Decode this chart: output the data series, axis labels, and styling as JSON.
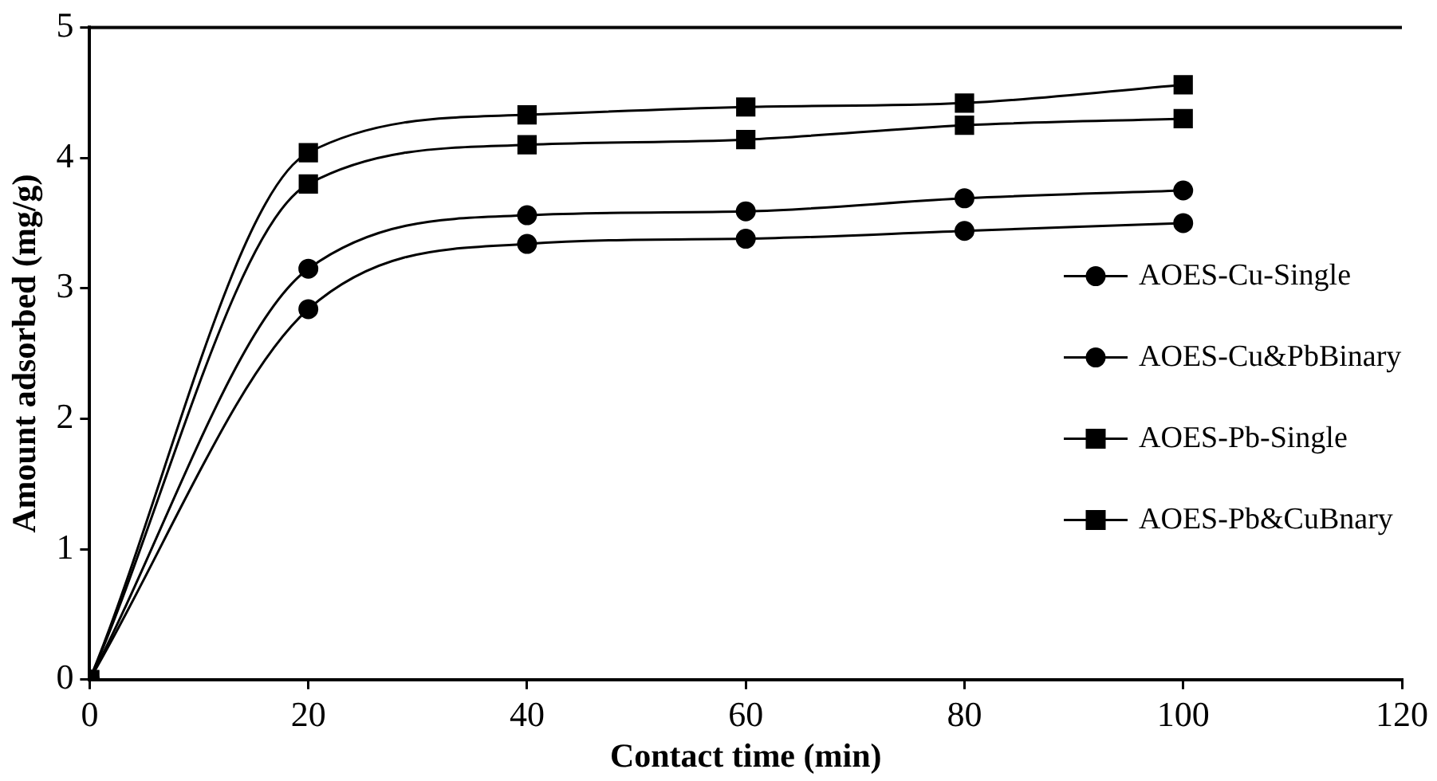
{
  "chart_data": {
    "type": "line",
    "xlabel": "Contact time (min)",
    "ylabel": "Amount adsorbed (mg/g)",
    "x": [
      0,
      20,
      40,
      60,
      80,
      100
    ],
    "series": [
      {
        "name": "AOES-Cu-Single",
        "color": "#000000",
        "marker": "circle",
        "values": [
          0,
          3.15,
          3.56,
          3.59,
          3.69,
          3.75
        ]
      },
      {
        "name": "AOES-Cu&PbBinary",
        "color": "#000000",
        "marker": "circle",
        "values": [
          0,
          2.84,
          3.34,
          3.38,
          3.44,
          3.5
        ]
      },
      {
        "name": "AOES-Pb-Single",
        "color": "#000000",
        "marker": "square",
        "values": [
          0,
          4.04,
          4.33,
          4.39,
          4.42,
          4.56
        ]
      },
      {
        "name": "AOES-Pb&CuBnary",
        "color": "#000000",
        "marker": "square",
        "values": [
          0,
          3.8,
          4.1,
          4.14,
          4.25,
          4.3
        ]
      }
    ],
    "xlim": [
      0,
      120
    ],
    "xticks": [
      0,
      20,
      40,
      60,
      80,
      100,
      120
    ],
    "ylim": [
      0,
      5
    ],
    "yticks": [
      0,
      1,
      2,
      3,
      4,
      5
    ],
    "grid": false,
    "legend": "right",
    "line_style": "solid"
  }
}
